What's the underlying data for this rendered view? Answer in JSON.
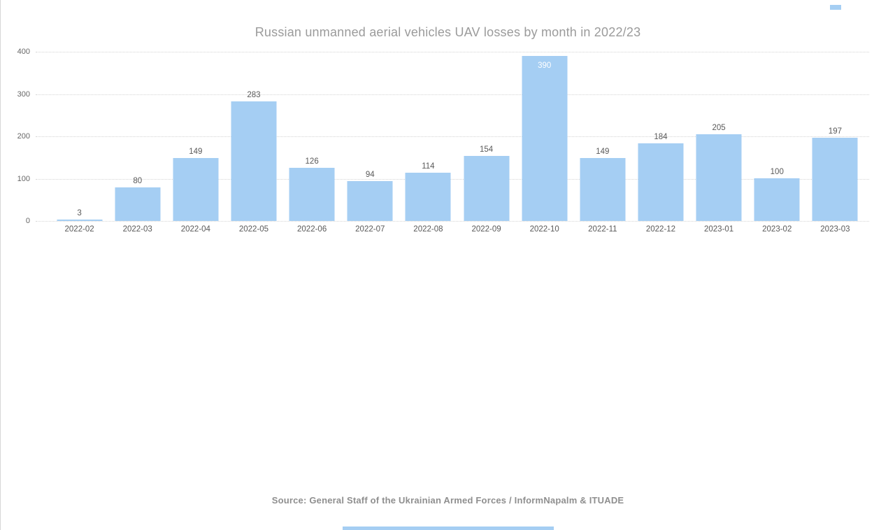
{
  "page": {
    "background_color": "#ffffff",
    "border_color": "#d6d6d6"
  },
  "chart_data": {
    "type": "bar",
    "title": "Russian unmanned aerial vehicles UAV losses by month in 2022/23",
    "categories": [
      "2022-02",
      "2022-03",
      "2022-04",
      "2022-05",
      "2022-06",
      "2022-07",
      "2022-08",
      "2022-09",
      "2022-10",
      "2022-11",
      "2022-12",
      "2023-01",
      "2023-02",
      "2023-03"
    ],
    "values": [
      3,
      80,
      149,
      283,
      126,
      94,
      114,
      154,
      390,
      149,
      184,
      205,
      100,
      197
    ],
    "xlabel": "",
    "ylabel": "",
    "ylim": [
      0,
      400
    ],
    "yticks": [
      0,
      100,
      200,
      300,
      400
    ],
    "grid": "horizontal-dotted",
    "legend": "none",
    "bar_color": "#a5cef3",
    "value_label_color": "#595959",
    "inside_value_label_color": "#ffffff",
    "title_color": "#9b9b9b",
    "tick_label_color": "#666666"
  },
  "footer": {
    "source": "Source: General Staff of the Ukrainian Armed Forces / InformNapalm & ITUADE"
  },
  "artifacts": {
    "top_right_mark_color": "#a5cef3",
    "bottom_strip_color": "#a5cef3"
  }
}
